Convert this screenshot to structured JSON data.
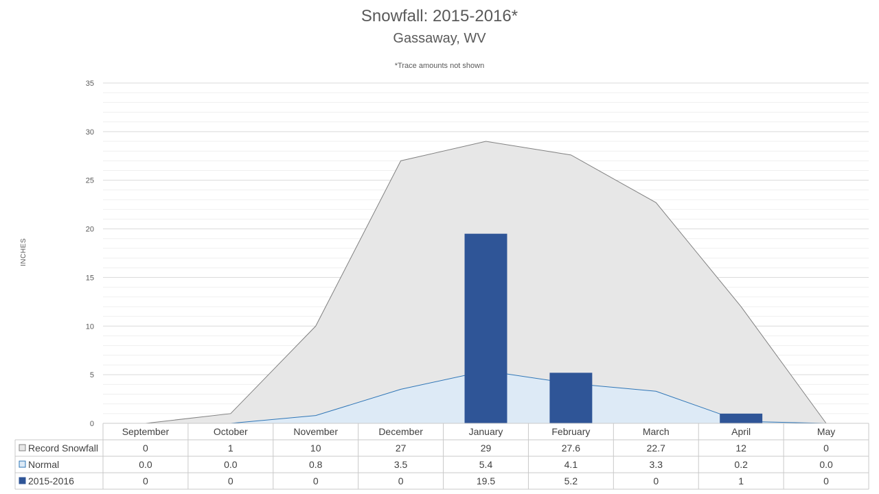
{
  "chart_data": {
    "type": "area",
    "title": "Snowfall: 2015-2016*",
    "subtitle": "Gassaway, WV",
    "note": "*Trace amounts not shown",
    "ylabel": "INCHES",
    "ylim": [
      0,
      35
    ],
    "yticks": [
      0,
      5,
      10,
      15,
      20,
      25,
      30,
      35
    ],
    "grid": true,
    "categories": [
      "September",
      "October",
      "November",
      "December",
      "January",
      "February",
      "March",
      "April",
      "May"
    ],
    "series": [
      {
        "name": "Record Snowfall",
        "kind": "area",
        "color": "#e7e7e7",
        "line_color": "#808080",
        "values": [
          0,
          1,
          10,
          27,
          29,
          27.6,
          22.7,
          12,
          0
        ],
        "display": [
          "0",
          "1",
          "10",
          "27",
          "29",
          "27.6",
          "22.7",
          "12",
          "0"
        ]
      },
      {
        "name": "Normal",
        "kind": "area",
        "color": "#ddeaf6",
        "line_color": "#2e75b6",
        "values": [
          0.0,
          0.0,
          0.8,
          3.5,
          5.4,
          4.1,
          3.3,
          0.2,
          0.0
        ],
        "display": [
          "0.0",
          "0.0",
          "0.8",
          "3.5",
          "5.4",
          "4.1",
          "3.3",
          "0.2",
          "0.0"
        ]
      },
      {
        "name": "2015-2016",
        "kind": "bar",
        "color": "#2f5597",
        "values": [
          0,
          0,
          0,
          0,
          19.5,
          5.2,
          0,
          1,
          0
        ],
        "display": [
          "0",
          "0",
          "0",
          "0",
          "19.5",
          "5.2",
          "0",
          "1",
          "0"
        ]
      }
    ]
  }
}
